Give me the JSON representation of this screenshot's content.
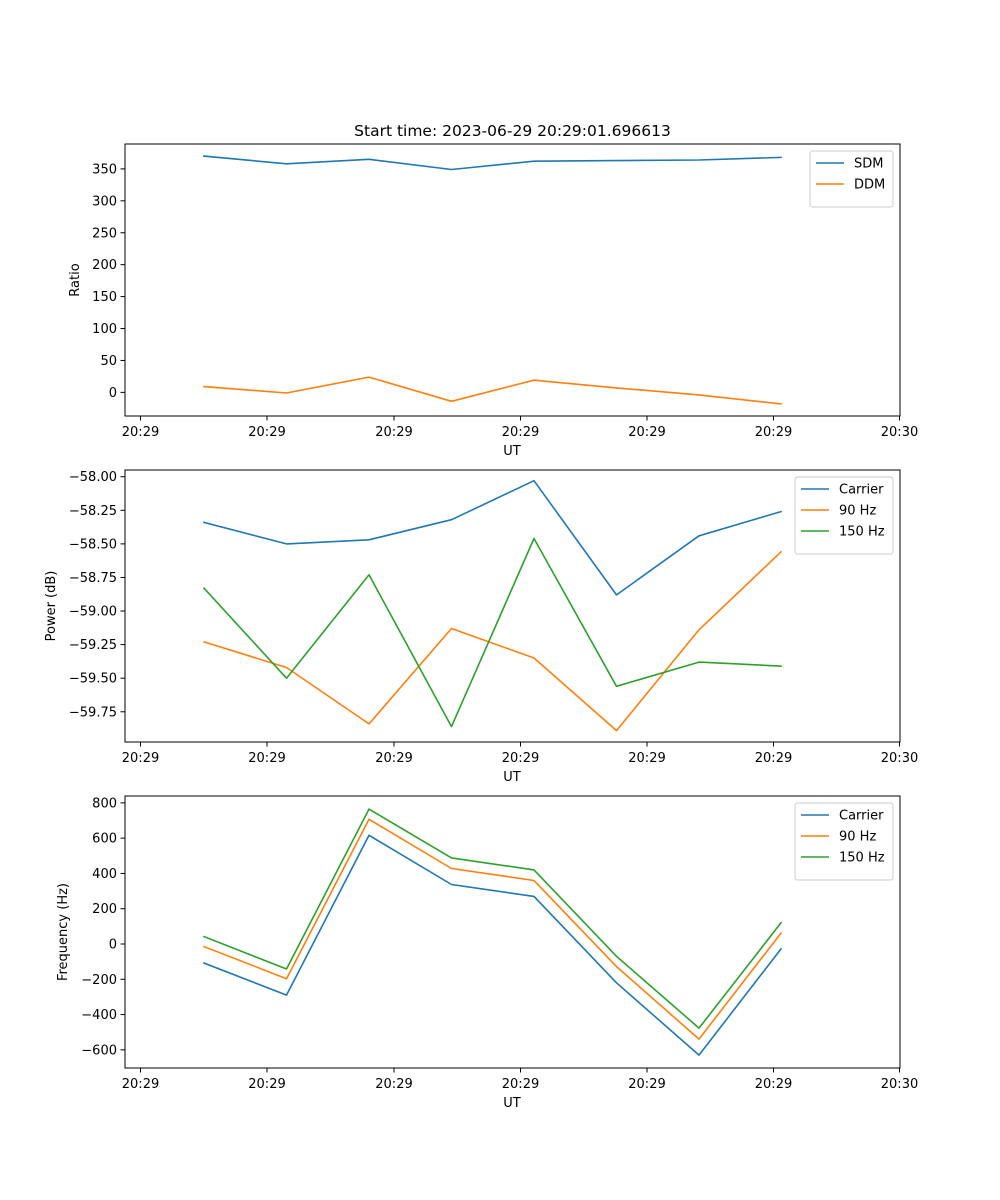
{
  "title": "Start time: 2023-06-29 20:29:01.696613",
  "chart_data": [
    {
      "type": "line",
      "xlabel": "UT",
      "ylabel": "Ratio",
      "x_ticks": [
        "20:29",
        "20:29",
        "20:29",
        "20:29",
        "20:29",
        "20:29",
        "20:30"
      ],
      "y_ticks": [
        "0",
        "50",
        "100",
        "150",
        "200",
        "250",
        "300",
        "350"
      ],
      "ylim": [
        -37,
        389
      ],
      "legend_position": "upper right",
      "grid": false,
      "series": [
        {
          "name": "SDM",
          "color": "#1f77b4",
          "values": [
            370,
            358,
            365,
            349,
            362,
            363,
            364,
            368
          ]
        },
        {
          "name": "DDM",
          "color": "#ff7f0e",
          "values": [
            9,
            -1,
            24,
            -14,
            19,
            7,
            -4,
            -18
          ]
        }
      ]
    },
    {
      "type": "line",
      "xlabel": "UT",
      "ylabel": "Power (dB)",
      "x_ticks": [
        "20:29",
        "20:29",
        "20:29",
        "20:29",
        "20:29",
        "20:29",
        "20:30"
      ],
      "y_ticks": [
        "−59.75",
        "−59.50",
        "−59.25",
        "−59.00",
        "−58.75",
        "−58.50",
        "−58.25",
        "−58.00"
      ],
      "ylim": [
        -59.975,
        -57.95
      ],
      "legend_position": "upper right",
      "grid": false,
      "series": [
        {
          "name": "Carrier",
          "color": "#1f77b4",
          "values": [
            -58.34,
            -58.5,
            -58.47,
            -58.32,
            -58.03,
            -58.88,
            -58.44,
            -58.26
          ]
        },
        {
          "name": "90 Hz",
          "color": "#ff7f0e",
          "values": [
            -59.23,
            -59.42,
            -59.84,
            -59.13,
            -59.35,
            -59.89,
            -59.14,
            -58.56
          ]
        },
        {
          "name": "150 Hz",
          "color": "#2ca02c",
          "values": [
            -58.83,
            -59.5,
            -58.73,
            -59.86,
            -58.46,
            -59.56,
            -59.38,
            -59.41
          ]
        }
      ]
    },
    {
      "type": "line",
      "xlabel": "UT",
      "ylabel": "Frequency (Hz)",
      "x_ticks": [
        "20:29",
        "20:29",
        "20:29",
        "20:29",
        "20:29",
        "20:29",
        "20:30"
      ],
      "y_ticks": [
        "−600",
        "−400",
        "−200",
        "0",
        "200",
        "400",
        "600",
        "800"
      ],
      "ylim": [
        -703,
        839
      ],
      "legend_position": "upper right",
      "grid": false,
      "series": [
        {
          "name": "Carrier",
          "color": "#1f77b4",
          "values": [
            -108,
            -290,
            616,
            337,
            270,
            -220,
            -630,
            -28
          ]
        },
        {
          "name": "90 Hz",
          "color": "#ff7f0e",
          "values": [
            -15,
            -197,
            707,
            428,
            360,
            -128,
            -539,
            62
          ]
        },
        {
          "name": "150 Hz",
          "color": "#2ca02c",
          "values": [
            42,
            -142,
            765,
            488,
            420,
            -70,
            -477,
            120
          ]
        }
      ]
    }
  ]
}
